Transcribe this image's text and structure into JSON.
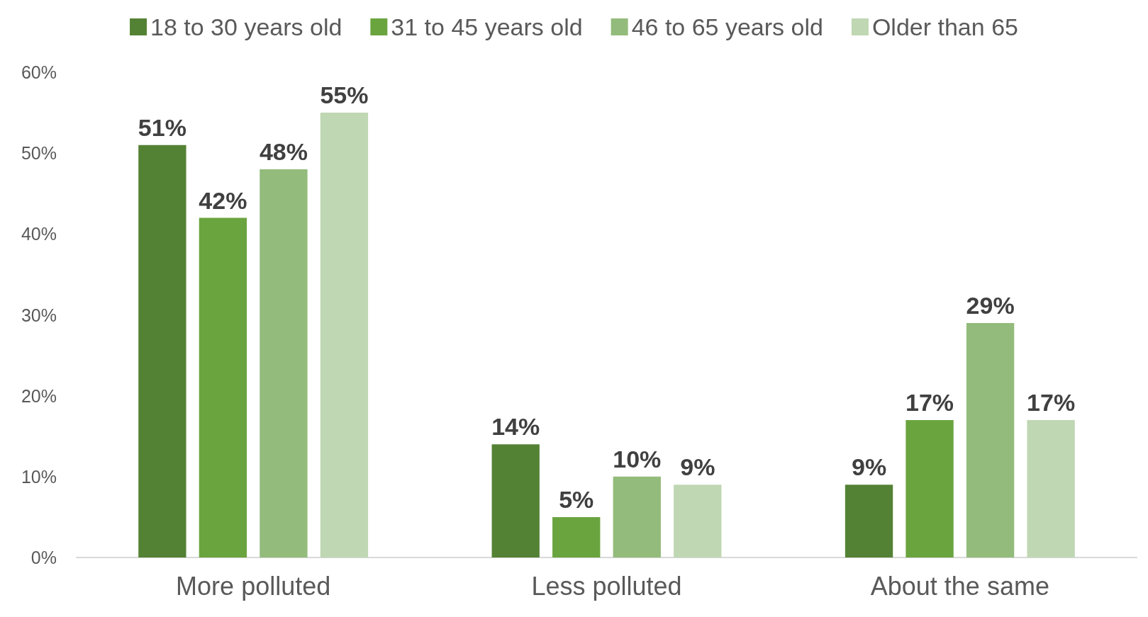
{
  "chart_data": {
    "type": "bar",
    "categories": [
      "More polluted",
      "Less polluted",
      "About the same"
    ],
    "series": [
      {
        "name": "18 to 30 years old",
        "color": "#548235",
        "values": [
          51,
          14,
          9
        ],
        "value_labels": [
          "51%",
          "14%",
          "9%"
        ]
      },
      {
        "name": "31 to 45 years old",
        "color": "#6aa43f",
        "values": [
          42,
          5,
          17
        ],
        "value_labels": [
          "42%",
          "5%",
          "17%"
        ]
      },
      {
        "name": "46 to 65 years old",
        "color": "#93bb7b",
        "values": [
          48,
          10,
          29
        ],
        "value_labels": [
          "48%",
          "10%",
          "29%"
        ]
      },
      {
        "name": "Older than 65",
        "color": "#bfd7b3",
        "values": [
          55,
          9,
          17
        ],
        "value_labels": [
          "55%",
          "9%",
          "17%"
        ]
      }
    ],
    "ylim": [
      0,
      60
    ],
    "yticks": [
      {
        "value": 0,
        "label": "0%"
      },
      {
        "value": 10,
        "label": "10%"
      },
      {
        "value": 20,
        "label": "20%"
      },
      {
        "value": 30,
        "label": "30%"
      },
      {
        "value": 40,
        "label": "40%"
      },
      {
        "value": 50,
        "label": "50%"
      },
      {
        "value": 60,
        "label": "60%"
      }
    ],
    "grid": false,
    "legend": "top"
  }
}
